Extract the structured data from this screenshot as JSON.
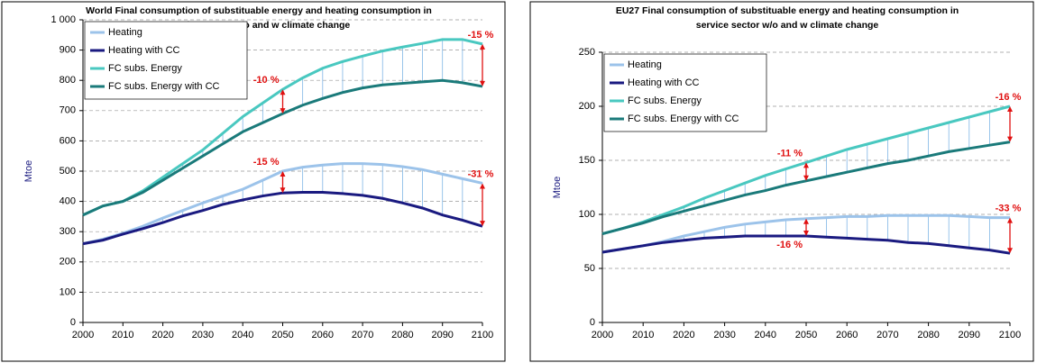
{
  "chart_data": [
    {
      "type": "line",
      "title": [
        "World Final consumption of substituable energy and heating consumption in",
        "service sector w/o and w climate change"
      ],
      "y_label": "Mtoe",
      "x": [
        2000,
        2005,
        2010,
        2015,
        2020,
        2025,
        2030,
        2035,
        2040,
        2045,
        2050,
        2055,
        2060,
        2065,
        2070,
        2075,
        2080,
        2085,
        2090,
        2095,
        2100
      ],
      "series": [
        {
          "name": "Heating",
          "color": "#9cc3ea",
          "values": [
            260,
            275,
            295,
            318,
            345,
            370,
            395,
            418,
            440,
            470,
            500,
            513,
            520,
            525,
            525,
            522,
            515,
            505,
            490,
            475,
            460
          ]
        },
        {
          "name": "Heating with CC",
          "color": "#1a1a80",
          "values": [
            260,
            272,
            292,
            310,
            330,
            352,
            370,
            390,
            405,
            418,
            428,
            430,
            430,
            426,
            420,
            410,
            395,
            378,
            355,
            338,
            318
          ]
        },
        {
          "name": "FC subs. Energy",
          "color": "#49c8c0",
          "values": [
            355,
            385,
            400,
            435,
            480,
            525,
            570,
            625,
            680,
            725,
            770,
            808,
            840,
            862,
            880,
            897,
            910,
            922,
            935,
            935,
            920
          ]
        },
        {
          "name": "FC subs. Energy with CC",
          "color": "#1a7a7a",
          "values": [
            355,
            385,
            400,
            430,
            470,
            510,
            550,
            590,
            630,
            660,
            690,
            718,
            740,
            760,
            775,
            785,
            790,
            795,
            800,
            792,
            780
          ]
        }
      ],
      "xlim": [
        2000,
        2100
      ],
      "xticks": [
        2000,
        2010,
        2020,
        2030,
        2040,
        2050,
        2060,
        2070,
        2080,
        2090,
        2100
      ],
      "ylim": [
        0,
        1000
      ],
      "yticks": [
        0,
        100,
        200,
        300,
        400,
        500,
        600,
        700,
        800,
        900,
        {
          "value": 1000,
          "label": "1 000"
        }
      ],
      "grid": true,
      "legend": "top-left",
      "annotations": [
        {
          "text": "-10 %",
          "x": 2050,
          "y": [
            770,
            690
          ],
          "position": "above"
        },
        {
          "text": "-15 %",
          "x": 2100,
          "y": [
            920,
            780
          ],
          "position": "above"
        },
        {
          "text": "-15 %",
          "x": 2050,
          "y": [
            500,
            428
          ],
          "position": "above"
        },
        {
          "text": "-31 %",
          "x": 2100,
          "y": [
            460,
            318
          ],
          "position": "above"
        }
      ]
    },
    {
      "type": "line",
      "title": [
        "EU27 Final consumption of substituable energy and heating consumption in",
        "service sector w/o and w climate change"
      ],
      "y_label": "Mtoe",
      "x": [
        2000,
        2005,
        2010,
        2015,
        2020,
        2025,
        2030,
        2035,
        2040,
        2045,
        2050,
        2055,
        2060,
        2065,
        2070,
        2075,
        2080,
        2085,
        2090,
        2095,
        2100
      ],
      "series": [
        {
          "name": "Heating",
          "color": "#9cc3ea",
          "values": [
            65,
            68,
            71,
            75,
            80,
            84,
            88,
            91,
            93,
            95,
            96,
            97,
            98,
            98,
            99,
            99,
            99,
            99,
            98,
            97,
            97
          ]
        },
        {
          "name": "Heating with CC",
          "color": "#1a1a80",
          "values": [
            65,
            68,
            71,
            74,
            76,
            78,
            79,
            80,
            80,
            80,
            80,
            79,
            78,
            77,
            76,
            74,
            73,
            71,
            69,
            67,
            64
          ]
        },
        {
          "name": "FC subs. Energy",
          "color": "#49c8c0",
          "values": [
            82,
            87,
            93,
            100,
            107,
            115,
            122,
            129,
            136,
            142,
            148,
            154,
            160,
            165,
            170,
            175,
            180,
            185,
            190,
            195,
            200
          ]
        },
        {
          "name": "FC subs. Energy with CC",
          "color": "#1a7a7a",
          "values": [
            82,
            87,
            92,
            98,
            103,
            108,
            113,
            118,
            122,
            127,
            131,
            135,
            139,
            143,
            147,
            150,
            154,
            158,
            161,
            164,
            167
          ]
        }
      ],
      "xlim": [
        2000,
        2100
      ],
      "xticks": [
        2000,
        2010,
        2020,
        2030,
        2040,
        2050,
        2060,
        2070,
        2080,
        2090,
        2100
      ],
      "ylim": [
        0,
        250
      ],
      "yticks": [
        0,
        50,
        100,
        150,
        200,
        250
      ],
      "grid": true,
      "legend": "top-left",
      "annotations": [
        {
          "text": "-11 %",
          "x": 2050,
          "y": [
            148,
            131
          ],
          "position": "above"
        },
        {
          "text": "-16 %",
          "x": 2100,
          "y": [
            200,
            167
          ],
          "position": "above"
        },
        {
          "text": "-16 %",
          "x": 2050,
          "y": [
            96,
            80
          ],
          "position": "below"
        },
        {
          "text": "-33 %",
          "x": 2100,
          "y": [
            97,
            64
          ],
          "position": "above"
        }
      ]
    }
  ]
}
